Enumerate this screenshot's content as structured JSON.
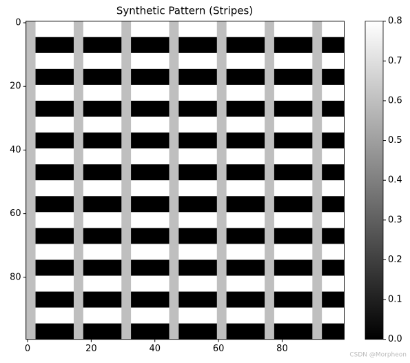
{
  "chart_data": {
    "type": "image",
    "title": "Synthetic Pattern (Stripes)",
    "colormap": "gray",
    "clim": [
      0,
      0.8
    ],
    "xlim": [
      -0.5,
      99.5
    ],
    "ylim": [
      99.5,
      -0.5
    ],
    "xticks": [
      0,
      20,
      40,
      60,
      80
    ],
    "yticks": [
      0,
      20,
      40,
      60,
      80
    ],
    "cbar_ticks": [
      {
        "value": 0,
        "label": "0.0"
      },
      {
        "value": 0.1,
        "label": "0.1"
      },
      {
        "value": 0.2,
        "label": "0.2"
      },
      {
        "value": 0.3,
        "label": "0.3"
      },
      {
        "value": 0.4,
        "label": "0.4"
      },
      {
        "value": 0.5,
        "label": "0.5"
      },
      {
        "value": 0.6,
        "label": "0.6"
      },
      {
        "value": 0.7,
        "label": "0.7"
      },
      {
        "value": 0.8,
        "label": "0.8"
      }
    ],
    "regions": [
      {
        "x": [
          -0.5,
          99.5
        ],
        "y": [
          -0.5,
          99.5
        ],
        "value": 0.8
      },
      {
        "x": [
          -0.5,
          99.5
        ],
        "y": [
          4.5,
          9.5
        ],
        "value": 0
      },
      {
        "x": [
          -0.5,
          99.5
        ],
        "y": [
          14.5,
          19.5
        ],
        "value": 0
      },
      {
        "x": [
          -0.5,
          99.5
        ],
        "y": [
          24.5,
          29.5
        ],
        "value": 0
      },
      {
        "x": [
          -0.5,
          99.5
        ],
        "y": [
          34.5,
          39.5
        ],
        "value": 0
      },
      {
        "x": [
          -0.5,
          99.5
        ],
        "y": [
          44.5,
          49.5
        ],
        "value": 0
      },
      {
        "x": [
          -0.5,
          99.5
        ],
        "y": [
          54.5,
          59.5
        ],
        "value": 0
      },
      {
        "x": [
          -0.5,
          99.5
        ],
        "y": [
          64.5,
          69.5
        ],
        "value": 0
      },
      {
        "x": [
          -0.5,
          99.5
        ],
        "y": [
          74.5,
          79.5
        ],
        "value": 0
      },
      {
        "x": [
          -0.5,
          99.5
        ],
        "y": [
          84.5,
          89.5
        ],
        "value": 0
      },
      {
        "x": [
          -0.5,
          99.5
        ],
        "y": [
          94.5,
          99.5
        ],
        "value": 0
      },
      {
        "x": [
          -0.5,
          2.5
        ],
        "y": [
          -0.5,
          99.5
        ],
        "value": 0.6
      },
      {
        "x": [
          14.5,
          17.5
        ],
        "y": [
          -0.5,
          99.5
        ],
        "value": 0.6
      },
      {
        "x": [
          29.5,
          32.5
        ],
        "y": [
          -0.5,
          99.5
        ],
        "value": 0.6
      },
      {
        "x": [
          44.5,
          47.5
        ],
        "y": [
          -0.5,
          99.5
        ],
        "value": 0.6
      },
      {
        "x": [
          59.5,
          62.5
        ],
        "y": [
          -0.5,
          99.5
        ],
        "value": 0.6
      },
      {
        "x": [
          74.5,
          77.5
        ],
        "y": [
          -0.5,
          99.5
        ],
        "value": 0.6
      },
      {
        "x": [
          89.5,
          92.5
        ],
        "y": [
          -0.5,
          99.5
        ],
        "value": 0.6
      }
    ],
    "watermark": "CSDN @Morpheon"
  }
}
